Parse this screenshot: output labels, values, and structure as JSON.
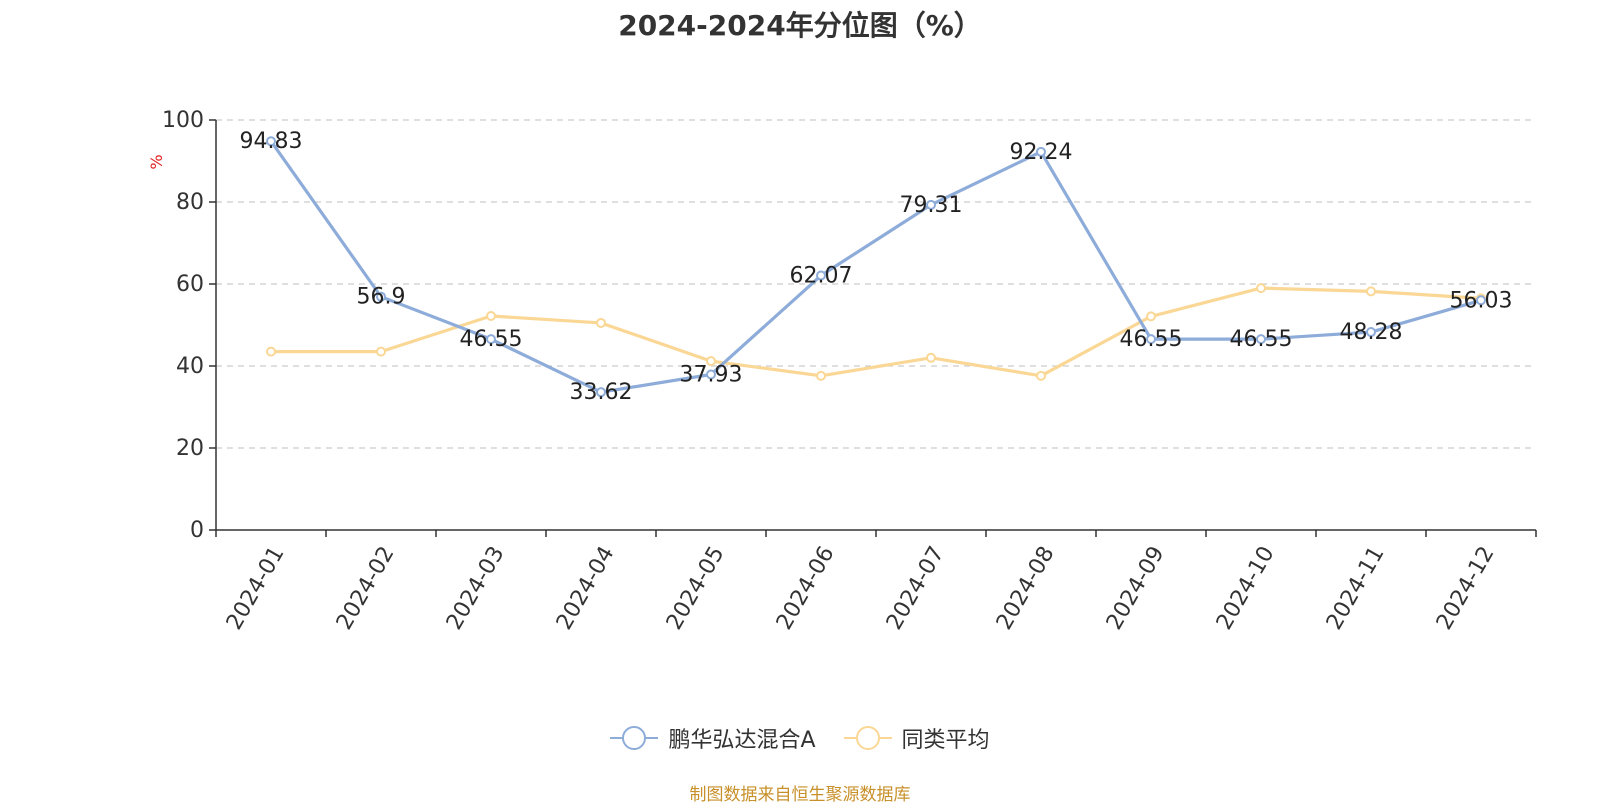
{
  "chart_data": {
    "type": "line",
    "title": "2024-2024年分位图（%）",
    "ylabel": "%",
    "ylim": [
      0,
      100
    ],
    "yticks": [
      0,
      20,
      40,
      60,
      80,
      100
    ],
    "grid": true,
    "legend_position": "bottom",
    "categories": [
      "2024-01",
      "2024-02",
      "2024-03",
      "2024-04",
      "2024-05",
      "2024-06",
      "2024-07",
      "2024-08",
      "2024-09",
      "2024-10",
      "2024-11",
      "2024-12"
    ],
    "series": [
      {
        "name": "鹏华弘达混合A",
        "color": "#8eacd9",
        "show_labels": true,
        "values": [
          94.83,
          56.9,
          46.55,
          33.62,
          37.93,
          62.07,
          79.31,
          92.24,
          46.55,
          46.55,
          48.28,
          56.03
        ],
        "labels": [
          "94.83",
          "56.9",
          "46.55",
          "33.62",
          "37.93",
          "62.07",
          "79.31",
          "92.24",
          "46.55",
          "46.55",
          "48.28",
          "56.03"
        ]
      },
      {
        "name": "同类平均",
        "color": "#fad795",
        "show_labels": false,
        "values": [
          43.5,
          43.5,
          52.2,
          50.5,
          41.2,
          37.6,
          42,
          37.6,
          52.1,
          59,
          58.2,
          56.5
        ]
      }
    ]
  },
  "source_note": "制图数据来自恒生聚源数据库",
  "colors": {
    "axis": "#333333",
    "grid": "#cccccc",
    "ylabel": "#e02020",
    "source": "#c8902a"
  }
}
